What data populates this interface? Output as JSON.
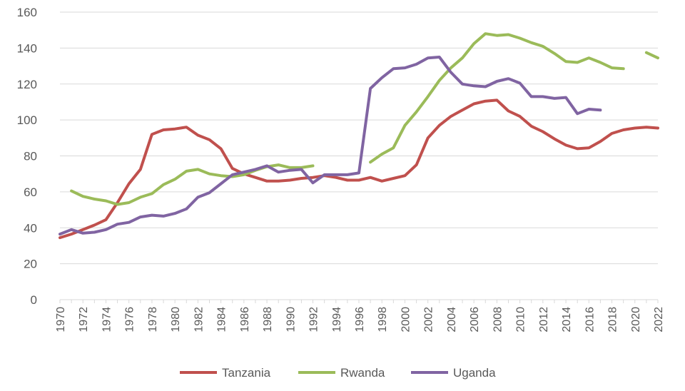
{
  "chart_data": {
    "type": "line",
    "title": "",
    "xlabel": "",
    "ylabel": "",
    "ylim": [
      0,
      160
    ],
    "yticks": [
      0,
      20,
      40,
      60,
      80,
      100,
      120,
      140,
      160
    ],
    "xlim": [
      1970,
      2022
    ],
    "xticks": [
      1970,
      1972,
      1974,
      1976,
      1978,
      1980,
      1982,
      1984,
      1986,
      1988,
      1990,
      1992,
      1994,
      1996,
      1998,
      2000,
      2002,
      2004,
      2006,
      2008,
      2010,
      2012,
      2014,
      2016,
      2018,
      2020,
      2022
    ],
    "grid": true,
    "legend_position": "bottom",
    "x": [
      1970,
      1971,
      1972,
      1973,
      1974,
      1975,
      1976,
      1977,
      1978,
      1979,
      1980,
      1981,
      1982,
      1983,
      1984,
      1985,
      1986,
      1987,
      1988,
      1989,
      1990,
      1991,
      1992,
      1993,
      1994,
      1995,
      1996,
      1997,
      1998,
      1999,
      2000,
      2001,
      2002,
      2003,
      2004,
      2005,
      2006,
      2007,
      2008,
      2009,
      2010,
      2011,
      2012,
      2013,
      2014,
      2015,
      2016,
      2017,
      2018,
      2019,
      2020,
      2021,
      2022
    ],
    "series": [
      {
        "name": "Tanzania",
        "color": "#C0504D",
        "values": [
          34.5,
          36.5,
          39,
          41.5,
          44.5,
          54,
          64.5,
          72.5,
          92,
          94.5,
          95,
          96,
          91.5,
          89,
          84,
          73,
          70,
          68,
          66,
          66,
          66.5,
          67.5,
          68,
          69,
          68,
          66.5,
          66.5,
          68,
          66,
          67.5,
          69,
          75,
          90,
          97,
          102,
          105.5,
          109,
          110.5,
          111,
          105,
          102,
          96.5,
          93.5,
          89.5,
          86,
          84,
          84.5,
          88,
          92.5,
          94.5,
          95.5,
          96,
          95.5
        ]
      },
      {
        "name": "Rwanda",
        "color": "#9BBB59",
        "values": [
          null,
          60.5,
          57.5,
          56,
          55,
          53,
          54,
          57,
          59,
          64,
          67,
          71.5,
          72.5,
          70,
          69,
          68.5,
          69.5,
          72,
          74,
          75,
          73.5,
          73.5,
          74.5,
          null,
          null,
          null,
          null,
          76.5,
          81,
          84.5,
          97,
          104.5,
          113,
          122,
          129,
          134.5,
          142.5,
          148,
          147,
          147.5,
          145.5,
          143,
          141,
          137,
          132.5,
          132,
          134.5,
          132,
          129,
          128.5,
          null,
          137.5,
          134.5
        ]
      },
      {
        "name": "Uganda",
        "color": "#8064A2",
        "values": [
          36.5,
          39,
          37,
          37.5,
          39,
          42,
          43,
          46,
          47,
          46.5,
          48,
          50.5,
          57,
          59.5,
          64.5,
          69.5,
          71,
          72.5,
          74.5,
          71,
          72,
          72.5,
          65,
          69.5,
          69.5,
          69.5,
          70.5,
          117.5,
          123.5,
          128.5,
          129,
          131,
          134.5,
          135,
          126.5,
          120,
          119,
          118.5,
          121.5,
          123,
          120.5,
          113,
          113,
          112,
          112.5,
          103.5,
          106,
          105.5,
          null,
          null,
          null,
          null,
          null
        ]
      }
    ]
  }
}
